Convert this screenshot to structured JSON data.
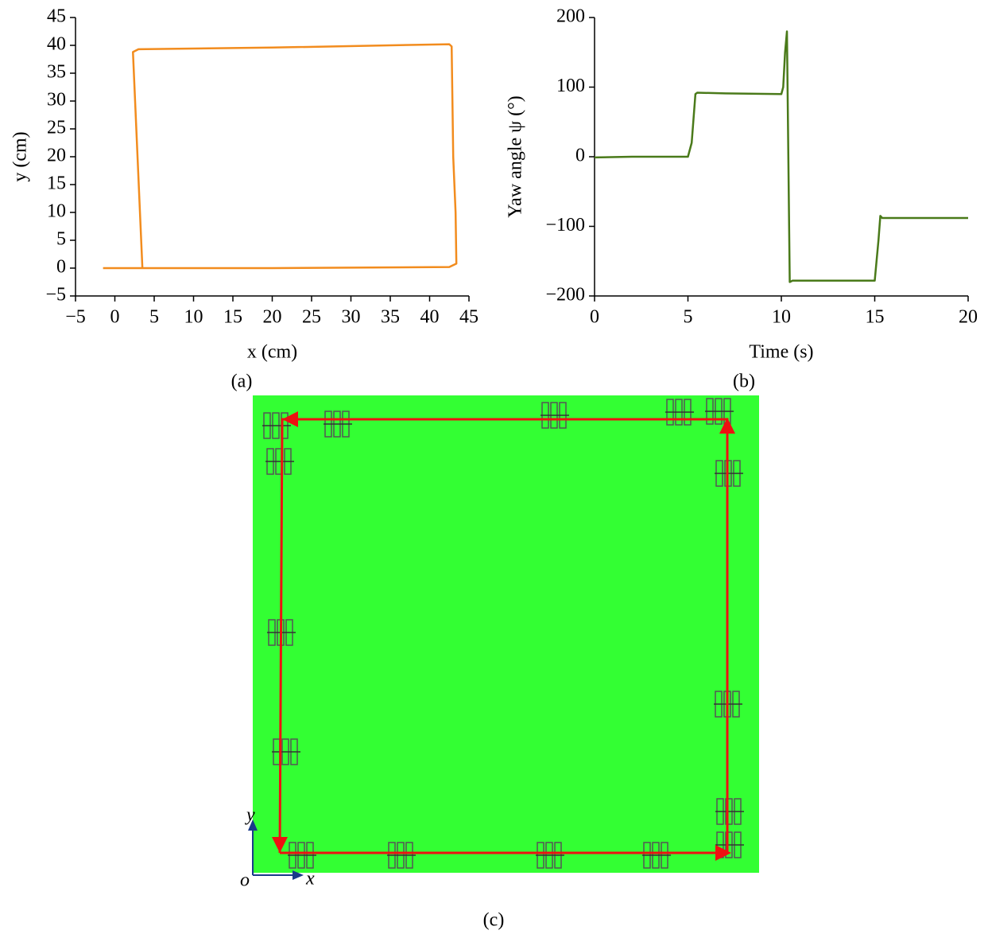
{
  "chart_data": [
    {
      "type": "line",
      "panel_label": "(a)",
      "x_label": "x (cm)",
      "y_label": "y (cm)",
      "xlim": [
        -5,
        45
      ],
      "ylim": [
        -5,
        45
      ],
      "xticks": [
        {
          "value": -5,
          "label": "−5"
        },
        0,
        5,
        10,
        15,
        20,
        25,
        30,
        35,
        40,
        45
      ],
      "yticks": [
        {
          "value": -5,
          "label": "−5"
        },
        0,
        5,
        10,
        15,
        20,
        25,
        30,
        35,
        40,
        45
      ],
      "x": [
        -1.5,
        20,
        42.5,
        43.4,
        43.3,
        43,
        42.8,
        42.5,
        20,
        3,
        2.3,
        3.5
      ],
      "series": [
        {
          "color": "#f28c1e",
          "values": [
            0,
            0,
            0.2,
            0.8,
            10,
            20,
            39.8,
            40.2,
            39.6,
            39.3,
            38.8,
            0
          ]
        }
      ]
    },
    {
      "type": "line",
      "panel_label": "(b)",
      "x_label": "Time (s)",
      "y_label": "Yaw angle ψ (°)",
      "xlim": [
        0,
        20
      ],
      "ylim": [
        -200,
        200
      ],
      "xticks": [
        0,
        5,
        10,
        15,
        20
      ],
      "yticks": [
        {
          "value": -200,
          "label": "−200"
        },
        {
          "value": -100,
          "label": "−100"
        },
        0,
        100,
        200
      ],
      "x": [
        0,
        2,
        5,
        5.2,
        5.4,
        5.5,
        7,
        10,
        10.1,
        10.2,
        10.3,
        10.45,
        10.6,
        15,
        15.2,
        15.3,
        15.4,
        20
      ],
      "series": [
        {
          "color": "#4a7a1a",
          "values": [
            -1,
            0,
            0,
            20,
            90,
            92,
            91,
            90,
            100,
            150,
            180,
            -180,
            -178,
            -178,
            -120,
            -85,
            -88,
            -88
          ]
        }
      ]
    }
  ],
  "panel_c": {
    "panel_label": "(c)",
    "axis_y": "y",
    "axis_x": "x",
    "origin": "o"
  }
}
